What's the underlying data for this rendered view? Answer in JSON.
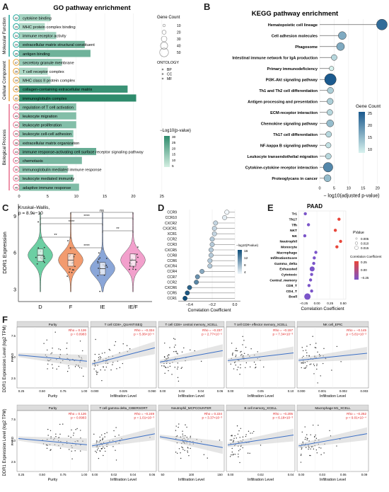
{
  "panel_letters": {
    "a": "A",
    "b": "B",
    "c": "C",
    "d": "D",
    "e": "E",
    "f": "F"
  },
  "colors": {
    "go_dark": "#2e8b6c",
    "go_light": "#d4efe2",
    "kegg_dark": "#1b5a8e",
    "kegg_light": "#d8f2ee",
    "violin_d": "#6ccfa3",
    "violin_f": "#f29b6f",
    "violin_ie": "#8aa6d8",
    "violin_ief": "#f2a0cc",
    "gridline": "#e6e6e6",
    "regline": "#3b6fc6",
    "band": "#cccccc",
    "rho_text": "#e02020"
  },
  "go": {
    "title": "GO pathway enrichment",
    "groups": [
      {
        "name": "Molecular Function",
        "color": "#1fa79b"
      },
      {
        "name": "Cellular Component",
        "color": "#e6a23c"
      },
      {
        "name": "Biological Process",
        "color": "#e86f8c"
      }
    ],
    "legend_count_title": "Gene Count",
    "legend_count_values": [
      "10",
      "20",
      "30",
      "40",
      "50"
    ],
    "legend_ontology_title": "ONTOLOGY",
    "legend_ontology_items": [
      "BP",
      "CC",
      "MF"
    ],
    "legend_p_title": "−Log10(p-value)",
    "legend_p_ticks": [
      "30",
      "25",
      "20",
      "15",
      "10",
      "5"
    ],
    "xticks": [
      "0",
      "5",
      "10",
      "15",
      "20",
      "25"
    ]
  },
  "kegg": {
    "title": "KEGG pathway enrichment",
    "xlabel": "− log10(adjusted p-value)",
    "xticks": [
      "0",
      "5",
      "10",
      "15",
      "20"
    ],
    "legend_title": "Gene Count",
    "legend_ticks": [
      "25",
      "20",
      "15",
      "10"
    ]
  },
  "violin": {
    "stat1": "Kruskal–Wallis,",
    "stat2": "p = 8.9e−10",
    "ylabel": "DDR1 Expression",
    "yticks": [
      "9",
      "6",
      "3"
    ],
    "sig": [
      "ns",
      "**",
      "****",
      "**",
      "****",
      "****"
    ]
  },
  "corr": {
    "xlabel": "Correlation Coefficient",
    "xticks": [
      "−0.4",
      "−0.2",
      "0.0"
    ],
    "legend_title": "−log10(Pvalue)",
    "legend_ticks": [
      "16",
      "12",
      "8",
      "4"
    ]
  },
  "paad": {
    "title": "PAAD",
    "xlabel": "Correlation Coefficient",
    "xticks": [
      "−0.25",
      "0.00",
      "0.25",
      "0.50"
    ],
    "legend_p_title": "PValue",
    "legend_p_items": [
      "0.005",
      "0.010",
      "0.015"
    ],
    "legend_c_title": "Correlation Coefficient",
    "legend_c_ticks": [
      "0.25",
      "0.00",
      "−0.25"
    ]
  },
  "scatter": {
    "ylabel": "DDR1 Expression Level (log2 TPM)",
    "cancer": "PAAD",
    "x_axis_purity": "Purity",
    "x_axis_infil": "Infiltration Level",
    "rows": [
      [
        {
          "title": "Purity",
          "rho": "Rho = 0.126",
          "p": "p = 0.0983",
          "ticks": [
            "0.25",
            "0.50",
            "0.75",
            "1.00"
          ]
        },
        {
          "title": "T cell CD8+_QUANTISEQ",
          "rho": "Rho = −0.334",
          "p": "p = 5.36×10⁻⁶",
          "ticks": [
            "0.000",
            "0.025",
            "0.050"
          ]
        },
        {
          "title": "T cell CD8+ central memory_XCELL",
          "rho": "Rho = −0.237",
          "p": "p = 2.77×10⁻⁵",
          "ticks": [
            "0.00",
            "0.02",
            "0.04",
            "0.06"
          ]
        },
        {
          "title": "T cell CD8+ effector memory_XCELL",
          "rho": "Rho = −0.157",
          "p": "p = 7.34×10⁻³",
          "ticks": [
            "0.00",
            "0.05",
            "0.10"
          ]
        },
        {
          "title": "NK cell_EPIC",
          "rho": "Rho = −0.145",
          "p": "p = 5.81×10⁻²",
          "ticks": [
            "0.000",
            "0.001",
            "0.002",
            "0.003"
          ]
        }
      ],
      [
        {
          "title": "Purity",
          "rho": "Rho = 0.126",
          "p": "p = 0.0983",
          "ticks": [
            "0.25",
            "0.50",
            "0.75",
            "1.00"
          ]
        },
        {
          "title": "T cell gamma delta_CIBERSORT",
          "rho": "Rho = −0.249",
          "p": "p = 1.01×10⁻³",
          "ticks": [
            "0.00",
            "0.02",
            "0.04",
            "0.06"
          ]
        },
        {
          "title": "Neutrophil_MCPCOUNTER",
          "rho": "Rho = 0.224",
          "p": "p = 3.37×10⁻³",
          "ticks": [
            "50",
            "100",
            "150"
          ]
        },
        {
          "title": "B cell memory_XCELL",
          "rho": "Rho = −0.205",
          "p": "p = 6.18×10⁻³",
          "ticks": [
            "0.00",
            "0.02",
            "0.04"
          ]
        },
        {
          "title": "Macrophage M1_XCELL",
          "rho": "Rho = −0.252",
          "p": "p = 9.01×10⁻⁴",
          "ticks": [
            "0.00",
            "0.03",
            "0.06",
            "0.09"
          ]
        }
      ]
    ],
    "yticks": [
      "7.5",
      "5.0",
      "2.5"
    ]
  },
  "chart_data": [
    {
      "type": "bar",
      "panel": "A",
      "title": "GO pathway enrichment",
      "categories": [
        "cytokine binding",
        "MHC protein complex binding",
        "immune receptor activity",
        "extracellular matrix structural constituent",
        "antigen binding",
        "secretory granule membrane",
        "T cell receptor complex",
        "MHC class II protein complex",
        "collagen-containing extracellular matrix",
        "immunoglobulin complex",
        "regulation of T cell activation",
        "leukocyte migration",
        "leukocyte proliferation",
        "leukocyte cell-cell adhesion",
        "extracellular matrix organization",
        "immune response-activating cell surface receptor signaling pathway",
        "chemotaxis",
        "immunoglobulin mediated immune response",
        "leukocyte mediated immunity",
        "adaptive immune response"
      ],
      "gene_counts": [
        "32",
        "25",
        "34",
        "29",
        "35",
        "47",
        "26",
        "19",
        "46",
        "32",
        "51",
        "49",
        "44",
        "49",
        "38",
        "43",
        "47",
        "30",
        "60",
        "45"
      ],
      "values": [
        5.5,
        4.5,
        6.5,
        11.5,
        12.5,
        7.5,
        5.0,
        5.5,
        19.0,
        20.5,
        10.0,
        10.0,
        10.0,
        9.5,
        9.5,
        13.5,
        11.0,
        8.5,
        9.5,
        10.5
      ],
      "xlim": [
        0,
        27
      ]
    },
    {
      "type": "scatter",
      "panel": "B",
      "title": "KEGG pathway enrichment",
      "xlabel": "− log10(adjusted p-value)",
      "categories": [
        "Hematopoietic cell lineage",
        "Cell adhesion molecules",
        "Phagosome",
        "Intestinal immune network for IgA production",
        "Primary immunodeficiency",
        "PI3K-Akt signaling pathway",
        "Th1 and Th2 cell differentiation",
        "Antigen processing and presentation",
        "ECM-receptor interaction",
        "Chemokine signaling pathway",
        "Th17 cell differentiation",
        "NF-kappa B signaling pathway",
        "Leukocyte transendothelial migration",
        "Cytokine-cytokine receptor interaction",
        "Proteoglycans in cancer"
      ],
      "values": [
        21.5,
        7.8,
        7.2,
        5.0,
        4.1,
        3.7,
        3.7,
        3.6,
        3.5,
        3.6,
        3.1,
        3.0,
        3.0,
        2.9,
        2.7
      ],
      "gene_count": [
        24,
        17,
        17,
        12,
        9,
        26,
        13,
        13,
        12,
        15,
        12,
        11,
        12,
        21,
        15
      ],
      "xlim": [
        0,
        22
      ]
    },
    {
      "type": "violin",
      "panel": "C",
      "ylabel": "DDR1 Expression",
      "categories": [
        "D",
        "F",
        "IE",
        "IE/F"
      ],
      "median": [
        5.8,
        5.4,
        4.7,
        5.4
      ],
      "ylim": [
        2,
        10
      ]
    },
    {
      "type": "scatter",
      "panel": "D",
      "xlabel": "Correlation Coefficient",
      "categories": [
        "CCR9",
        "CCR10",
        "CXCR2",
        "CX3CR1",
        "XCR1",
        "CCR2",
        "CCR3",
        "CXCR5",
        "CCR8",
        "CCR6",
        "CXCR4",
        "CCR4",
        "CCR7",
        "CCR2",
        "CXCR6",
        "CCR5",
        "CCR1"
      ],
      "values": [
        -0.07,
        -0.09,
        -0.17,
        -0.18,
        -0.18,
        -0.2,
        -0.2,
        -0.21,
        -0.21,
        -0.22,
        -0.22,
        -0.29,
        -0.33,
        -0.34,
        -0.4,
        -0.42,
        -0.44
      ],
      "neglog10p": [
        1,
        2,
        4,
        4,
        4,
        5,
        5,
        5,
        5,
        5,
        5,
        8,
        10,
        11,
        14,
        15,
        16
      ],
      "xlim": [
        -0.5,
        0.05
      ]
    },
    {
      "type": "scatter",
      "panel": "E",
      "title": "PAAD",
      "xlabel": "Correlation Coefficient",
      "categories": [
        "Tr1",
        "Th17",
        "Tfh",
        "NKT",
        "NK",
        "Neutrophil",
        "Monocyte",
        "Macrophage",
        "InfiltrationScore",
        "Gamma_delta",
        "Exhausted",
        "Cytotoxic",
        "Central_memory",
        "CD8_T",
        "CD4_T",
        "Bcell"
      ],
      "values": [
        -0.22,
        0.42,
        -0.16,
        0.35,
        -0.23,
        0.45,
        0.38,
        -0.02,
        -0.05,
        -0.06,
        -0.09,
        -0.1,
        -0.12,
        -0.15,
        -0.1,
        -0.18
      ],
      "xlim": [
        -0.35,
        0.55
      ]
    },
    {
      "type": "scatter",
      "panel": "F",
      "ylabel": "DDR1 Expression Level (log2 TPM)",
      "series": [
        {
          "name": "Purity",
          "rho": 0.126
        },
        {
          "name": "T cell CD8+_QUANTISEQ",
          "rho": -0.334
        },
        {
          "name": "T cell CD8+ central memory_XCELL",
          "rho": -0.237
        },
        {
          "name": "T cell CD8+ effector memory_XCELL",
          "rho": -0.157
        },
        {
          "name": "NK cell_EPIC",
          "rho": -0.145
        },
        {
          "name": "T cell gamma delta_CIBERSORT",
          "rho": -0.249
        },
        {
          "name": "Neutrophil_MCPCOUNTER",
          "rho": 0.224
        },
        {
          "name": "B cell memory_XCELL",
          "rho": -0.205
        },
        {
          "name": "Macrophage M1_XCELL",
          "rho": -0.252
        }
      ]
    }
  ]
}
